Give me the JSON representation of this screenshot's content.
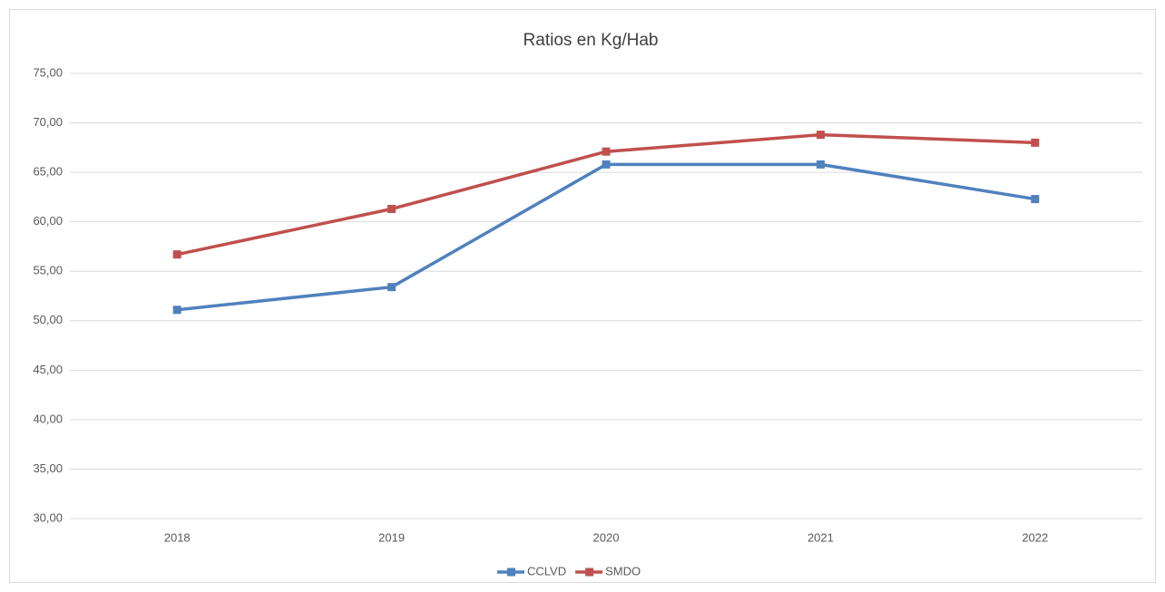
{
  "chart_data": {
    "type": "line",
    "title": "Ratios en Kg/Hab",
    "categories": [
      "2018",
      "2019",
      "2020",
      "2021",
      "2022"
    ],
    "series": [
      {
        "name": "CCLVD",
        "color": "#4f81bd",
        "values": [
          51.1,
          53.4,
          65.8,
          65.8,
          62.3
        ]
      },
      {
        "name": "SMDO",
        "color": "#c0504d",
        "values": [
          56.7,
          61.3,
          67.1,
          68.8,
          68.0
        ]
      }
    ],
    "ylim": [
      30,
      75
    ],
    "yticks": [
      {
        "value": 30,
        "label": "30,00"
      },
      {
        "value": 35,
        "label": "35,00"
      },
      {
        "value": 40,
        "label": "40,00"
      },
      {
        "value": 45,
        "label": "45,00"
      },
      {
        "value": 50,
        "label": "50,00"
      },
      {
        "value": 55,
        "label": "55,00"
      },
      {
        "value": 60,
        "label": "60,00"
      },
      {
        "value": 65,
        "label": "65,00"
      },
      {
        "value": 70,
        "label": "70,00"
      },
      {
        "value": 75,
        "label": "75,00"
      }
    ],
    "grid": true,
    "legend": "bottom"
  }
}
